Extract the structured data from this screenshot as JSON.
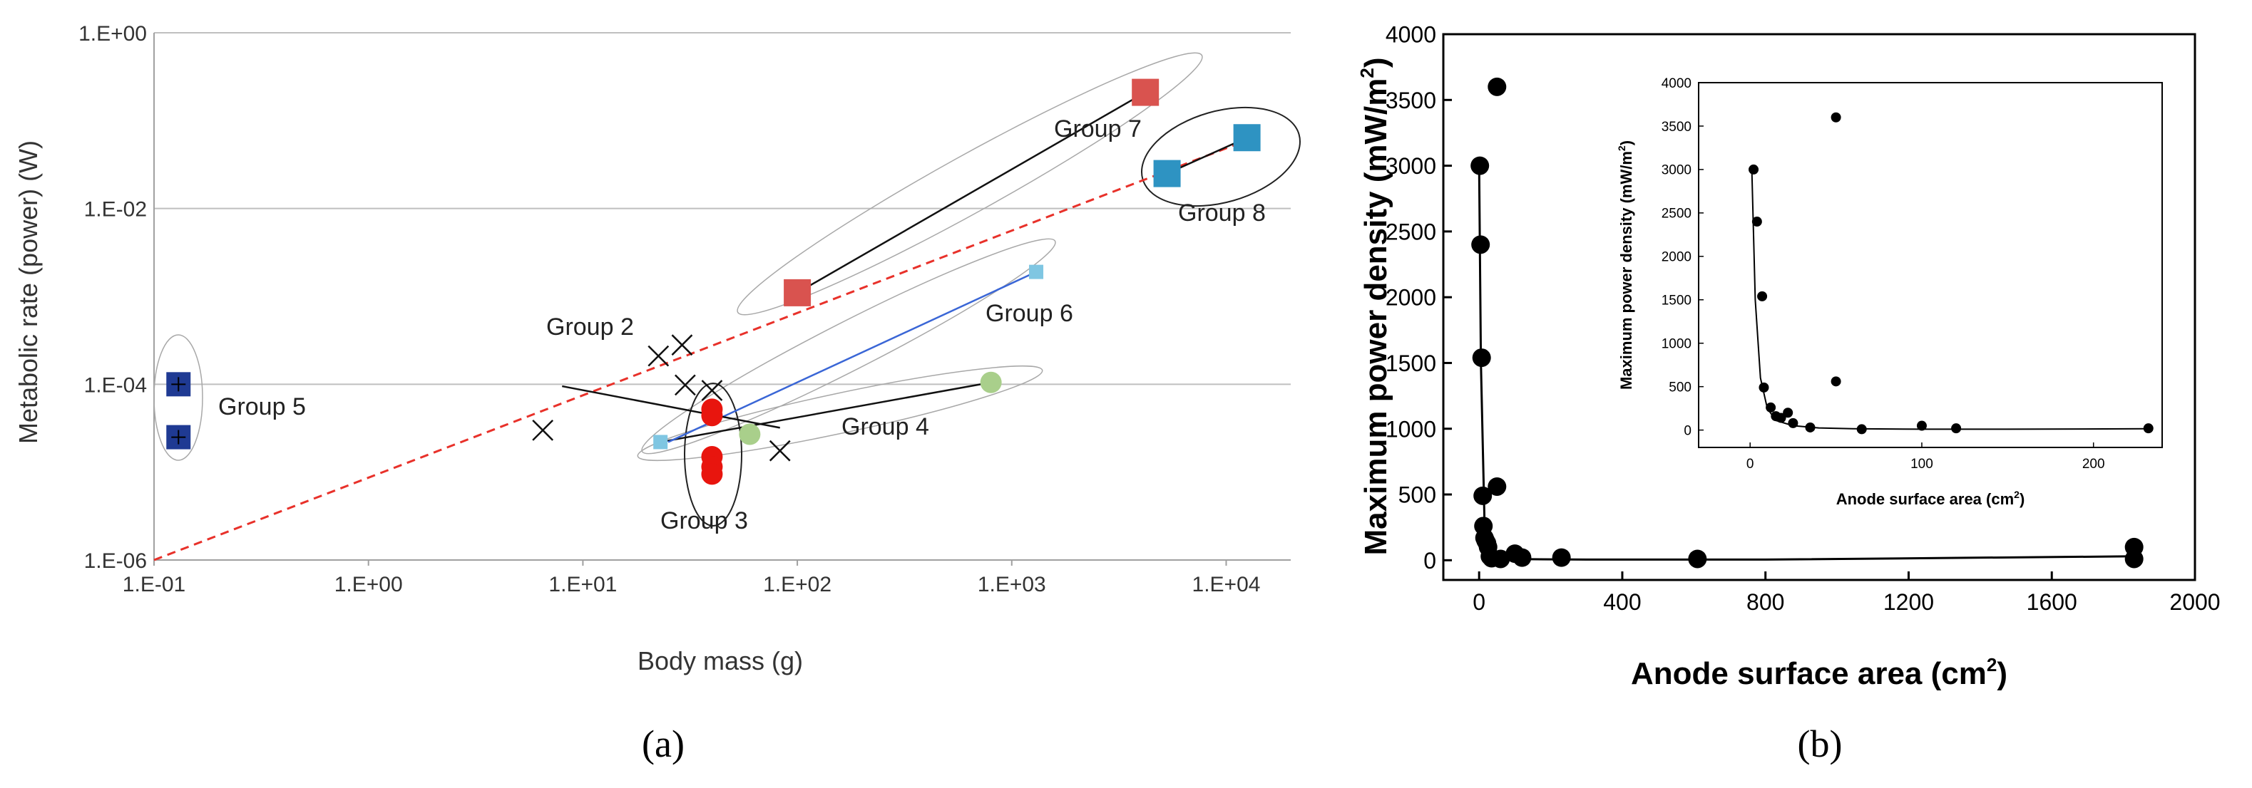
{
  "panels": [
    {
      "id": "a",
      "caption": "(a)"
    },
    {
      "id": "b",
      "caption": "(b)"
    }
  ],
  "colors": {
    "gridline": "#bfbfbf",
    "axis": "#a0a0a0",
    "group7": "#d9534f",
    "group8": "#2e93c2",
    "group5": "#1f3a93",
    "group3": "#e8150e",
    "group4": "#a9cf8b",
    "group6": "#7fc6e2",
    "blueline": "#3a66d6",
    "dashed": "#e8312a",
    "black": "#000000"
  },
  "chart_data": [
    {
      "type": "scatter",
      "title": "",
      "xlabel": "Body mass (g)",
      "ylabel": "Metabolic rate (power) (W)",
      "xscale": "log",
      "yscale": "log",
      "xlim": [
        0.1,
        20000
      ],
      "ylim": [
        1e-06,
        1
      ],
      "xticks": [
        0.1,
        1,
        10,
        100,
        1000,
        10000
      ],
      "xtick_labels": [
        "1.E-01",
        "1.E+00",
        "1.E+01",
        "1.E+02",
        "1.E+03",
        "1.E+04"
      ],
      "yticks": [
        1e-06,
        0.0001,
        0.01,
        1
      ],
      "ytick_labels": [
        "1.E-06",
        "1.E-04",
        "1.E-02",
        "1.E+00"
      ],
      "grid": "horizontal",
      "reference_line": {
        "name": "scaling line",
        "style": "dashed",
        "x": [
          0.1,
          11000
        ],
        "y": [
          1e-06,
          0.053
        ]
      },
      "group_labels": [
        "Group 2",
        "Group 3",
        "Group 4",
        "Group 5",
        "Group 6",
        "Group 7",
        "Group 8"
      ],
      "series": [
        {
          "name": "Group 7",
          "marker": "square",
          "color": "group7",
          "points": [
            [
              100,
              0.0011
            ],
            [
              4200,
              0.21
            ]
          ],
          "fit": [
            [
              100,
              0.0011
            ],
            [
              4200,
              0.21
            ]
          ]
        },
        {
          "name": "Group 8",
          "marker": "square",
          "color": "group8",
          "points": [
            [
              5300,
              0.025
            ],
            [
              12500,
              0.064
            ]
          ],
          "fit": [
            [
              5300,
              0.025
            ],
            [
              12500,
              0.064
            ]
          ]
        },
        {
          "name": "Group 5",
          "marker": "square",
          "color": "group5",
          "points": [
            [
              0.13,
              0.0001
            ],
            [
              0.13,
              2.5e-05
            ]
          ]
        },
        {
          "name": "Group 3",
          "marker": "circle",
          "color": "group3",
          "points": [
            [
              40,
              5.2e-05
            ],
            [
              40,
              4.4e-05
            ],
            [
              40,
              1.5e-05
            ],
            [
              40,
              1.15e-05
            ],
            [
              40,
              9.5e-06
            ]
          ]
        },
        {
          "name": "Group 4",
          "marker": "circle",
          "color": "group4",
          "points": [
            [
              800,
              0.000105
            ],
            [
              60,
              2.7e-05
            ]
          ],
          "fit": [
            [
              23,
              2.2e-05
            ],
            [
              800,
              0.000105
            ]
          ]
        },
        {
          "name": "Group 6",
          "marker": "square",
          "color": "group6",
          "points": [
            [
              1300,
              0.0019
            ],
            [
              23,
              2.2e-05
            ]
          ],
          "fit": [
            [
              25,
              2.2e-05
            ],
            [
              1300,
              0.0019
            ]
          ]
        },
        {
          "name": "Group 2",
          "marker": "x",
          "color": "black",
          "points": [
            [
              6.5,
              3e-05
            ],
            [
              22.5,
              0.00021
            ],
            [
              29,
              0.00028
            ],
            [
              30,
              9.8e-05
            ],
            [
              40,
              8.5e-05
            ],
            [
              83,
              1.75e-05
            ]
          ],
          "fit": [
            [
              8,
              9.5e-05
            ],
            [
              83,
              3.2e-05
            ]
          ]
        }
      ]
    },
    {
      "type": "scatter",
      "title": "",
      "xlabel": "Anode surface area (cm",
      "xlabel_sup": "2",
      "xlabel_tail": ")",
      "ylabel": "Maximum power density (mW/m",
      "ylabel_sup": "2",
      "ylabel_tail": ")",
      "xlim": [
        -100,
        2000
      ],
      "ylim": [
        -150,
        4000
      ],
      "xticks": [
        0,
        400,
        800,
        1200,
        1600,
        2000
      ],
      "xtick_labels": [
        "0",
        "400",
        "800",
        "1200",
        "1600",
        "2000"
      ],
      "yticks": [
        0,
        500,
        1000,
        1500,
        2000,
        2500,
        3000,
        3500,
        4000
      ],
      "ytick_labels": [
        "0",
        "500",
        "1000",
        "1500",
        "2000",
        "2500",
        "3000",
        "3500",
        "4000"
      ],
      "x": [
        2,
        4,
        7,
        10,
        12,
        15,
        18,
        22,
        25,
        30,
        35,
        50,
        50,
        60,
        100,
        120,
        230,
        610,
        1830,
        1830
      ],
      "y": [
        3000,
        2400,
        1540,
        490,
        260,
        170,
        150,
        130,
        100,
        30,
        15,
        560,
        3600,
        10,
        50,
        20,
        20,
        10,
        100,
        10
      ],
      "fit_x": [
        0,
        5,
        15,
        30,
        60,
        120,
        300,
        800,
        1830
      ],
      "fit_y": [
        3000,
        1500,
        300,
        60,
        15,
        8,
        5,
        5,
        30
      ],
      "inset": {
        "type": "scatter",
        "xlabel": "Anode surface area (cm",
        "xlabel_sup": "2",
        "xlabel_tail": ")",
        "ylabel": "Maximum power density (mW/m",
        "ylabel_sup": "2",
        "ylabel_tail": ")",
        "xlim": [
          -30,
          240
        ],
        "ylim": [
          -200,
          4000
        ],
        "xticks": [
          0,
          100,
          200
        ],
        "xtick_labels": [
          "0",
          "100",
          "200"
        ],
        "yticks": [
          0,
          500,
          1000,
          1500,
          2000,
          2500,
          3000,
          3500,
          4000
        ],
        "ytick_labels": [
          "0",
          "500",
          "1000",
          "1500",
          "2000",
          "2500",
          "3000",
          "3500",
          "4000"
        ],
        "x": [
          2,
          4,
          7,
          8,
          12,
          15,
          18,
          22,
          25,
          35,
          50,
          50,
          65,
          100,
          120,
          232
        ],
        "y": [
          3000,
          2400,
          1540,
          490,
          260,
          160,
          140,
          200,
          80,
          30,
          560,
          3600,
          10,
          50,
          20,
          20
        ],
        "fit_x": [
          1,
          3,
          6,
          10,
          15,
          25,
          40,
          60,
          100,
          150,
          232
        ],
        "fit_y": [
          3000,
          1500,
          600,
          250,
          110,
          50,
          25,
          15,
          10,
          10,
          15
        ]
      }
    }
  ]
}
